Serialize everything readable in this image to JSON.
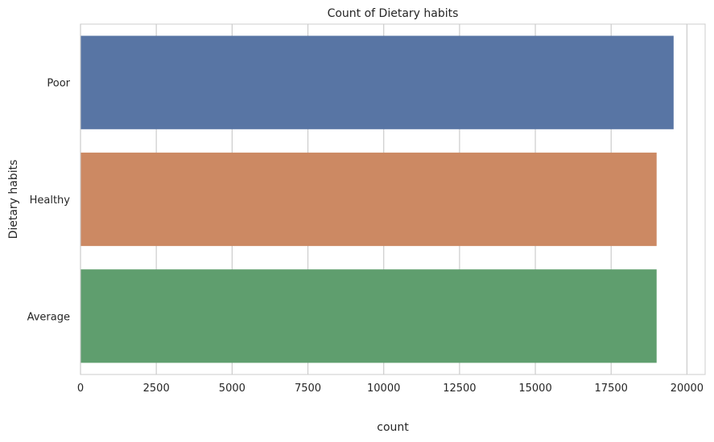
{
  "chart_data": {
    "type": "bar",
    "orientation": "horizontal",
    "title": "Count of Dietary habits",
    "xlabel": "count",
    "ylabel": "Dietary habits",
    "categories": [
      "Poor",
      "Healthy",
      "Average"
    ],
    "values": [
      19560,
      19000,
      19000
    ],
    "colors": [
      "#5875a4",
      "#cc8963",
      "#5f9e6e"
    ],
    "xlim": [
      0,
      20600
    ],
    "xticks": [
      0,
      2500,
      5000,
      7500,
      10000,
      12500,
      15000,
      17500,
      20000
    ],
    "xtick_labels": [
      "0",
      "2500",
      "5000",
      "7500",
      "10000",
      "12500",
      "15000",
      "17500",
      "20000"
    ],
    "grid": true,
    "grid_axis": "x",
    "legend": "none"
  }
}
